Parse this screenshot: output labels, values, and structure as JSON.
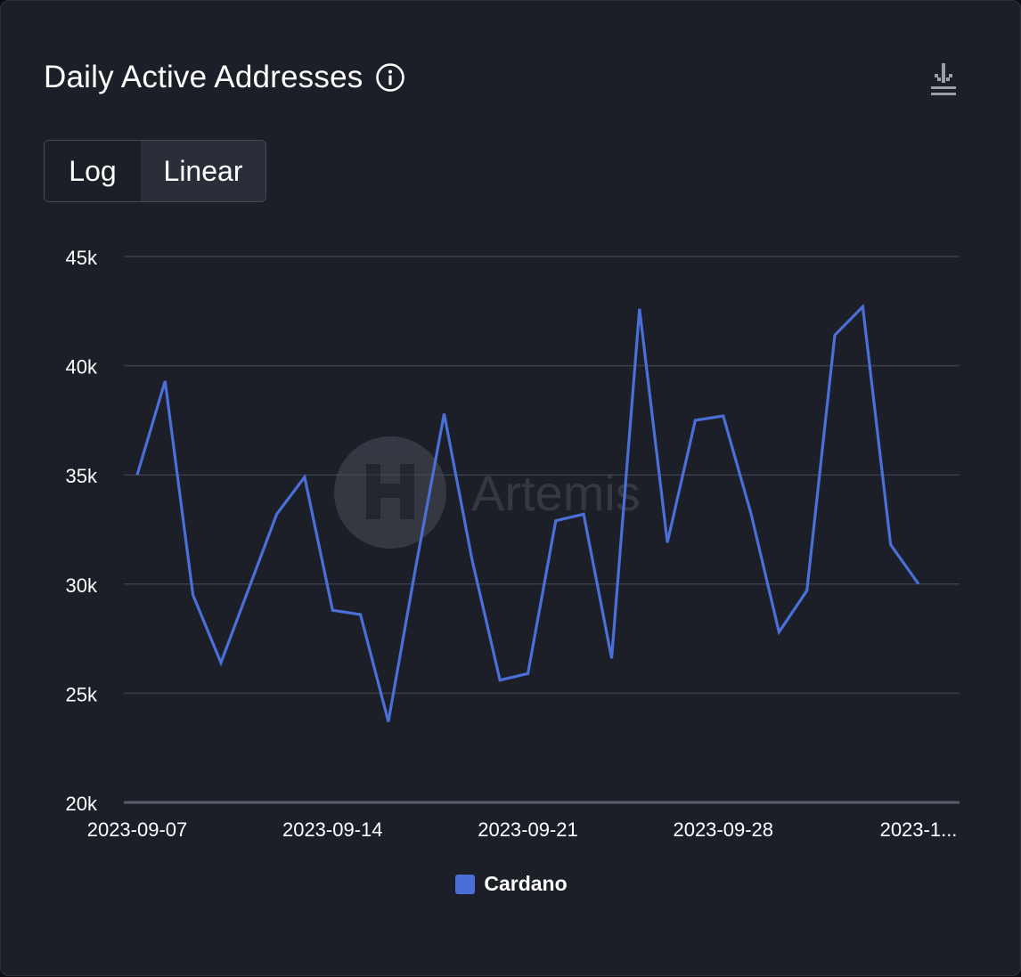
{
  "header": {
    "title": "Daily Active Addresses",
    "info_icon": "info-circle-icon",
    "download_icon": "download-icon"
  },
  "scale_toggle": {
    "options": [
      "Log",
      "Linear"
    ],
    "selected": "Linear"
  },
  "watermark": {
    "text": "Artemis"
  },
  "colors": {
    "background": "#1c1f28",
    "series": "#4a6fd8",
    "grid": "#3a3e4a",
    "axis_text": "#ffffff"
  },
  "chart_data": {
    "type": "line",
    "title": "Daily Active Addresses",
    "xlabel": "",
    "ylabel": "",
    "ylim": [
      20000,
      45000
    ],
    "y_ticks": [
      {
        "value": 20000,
        "label": "20k"
      },
      {
        "value": 25000,
        "label": "25k"
      },
      {
        "value": 30000,
        "label": "30k"
      },
      {
        "value": 35000,
        "label": "35k"
      },
      {
        "value": 40000,
        "label": "40k"
      },
      {
        "value": 45000,
        "label": "45k"
      }
    ],
    "x_ticks": [
      {
        "date": "2023-09-07",
        "label": "2023-09-07"
      },
      {
        "date": "2023-09-14",
        "label": "2023-09-14"
      },
      {
        "date": "2023-09-21",
        "label": "2023-09-21"
      },
      {
        "date": "2023-09-28",
        "label": "2023-09-28"
      },
      {
        "date": "2023-10-05",
        "label": "2023-1..."
      }
    ],
    "grid": true,
    "legend": "bottom-center",
    "x": [
      "2023-09-07",
      "2023-09-08",
      "2023-09-09",
      "2023-09-10",
      "2023-09-11",
      "2023-09-12",
      "2023-09-13",
      "2023-09-14",
      "2023-09-15",
      "2023-09-16",
      "2023-09-17",
      "2023-09-18",
      "2023-09-19",
      "2023-09-20",
      "2023-09-21",
      "2023-09-22",
      "2023-09-23",
      "2023-09-24",
      "2023-09-25",
      "2023-09-26",
      "2023-09-27",
      "2023-09-28",
      "2023-09-29",
      "2023-09-30",
      "2023-10-01",
      "2023-10-02",
      "2023-10-03",
      "2023-10-04",
      "2023-10-05"
    ],
    "series": [
      {
        "name": "Cardano",
        "color": "#4a6fd8",
        "values": [
          35000,
          39300,
          29500,
          26400,
          29800,
          33200,
          34900,
          28800,
          28600,
          23700,
          30900,
          37800,
          31100,
          25600,
          25900,
          32900,
          33200,
          26600,
          42600,
          31900,
          37500,
          37700,
          33200,
          27800,
          29700,
          41400,
          42700,
          31800,
          30000
        ]
      }
    ]
  }
}
